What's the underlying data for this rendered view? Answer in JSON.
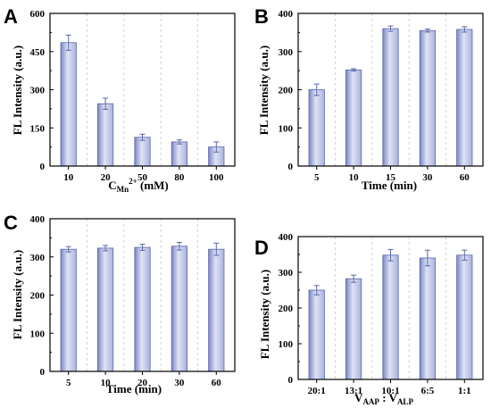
{
  "colors": {
    "bar_fill_light": "#dfe3f4",
    "bar_fill_mid": "#a9b1dd",
    "bar_fill_dark": "#7c87c4",
    "bar_stroke": "#5a66a8",
    "divider": "#c8c8c8",
    "axis": "#000000"
  },
  "chart_data": [
    {
      "panel": "A",
      "type": "bar",
      "categories": [
        "10",
        "20",
        "50",
        "80",
        "100"
      ],
      "values": [
        485,
        245,
        113,
        95,
        75
      ],
      "errors": [
        30,
        22,
        12,
        8,
        20
      ],
      "ylabel": "FL Intensity (a.u.)",
      "xlabel_main": "C",
      "xlabel_sub": "Mn",
      "xlabel_sup": "2+",
      "xlabel_unit": " (mM)",
      "ylim": [
        0,
        600
      ],
      "yticks": [
        "0",
        "150",
        "300",
        "450",
        "600"
      ],
      "grid": "dashed vertical dividers between bars"
    },
    {
      "panel": "B",
      "type": "bar",
      "categories": [
        "5",
        "10",
        "15",
        "30",
        "60"
      ],
      "values": [
        200,
        252,
        360,
        355,
        358
      ],
      "errors": [
        15,
        3,
        7,
        4,
        7
      ],
      "ylabel": "FL Intensity (a.u.)",
      "xlabel": "Time (min)",
      "ylim": [
        0,
        400
      ],
      "yticks": [
        "0",
        "100",
        "200",
        "300",
        "400"
      ],
      "grid": "dashed vertical dividers between bars"
    },
    {
      "panel": "C",
      "type": "bar",
      "categories": [
        "5",
        "10",
        "20",
        "30",
        "60"
      ],
      "values": [
        320,
        323,
        325,
        328,
        320
      ],
      "errors": [
        7,
        7,
        8,
        10,
        16
      ],
      "ylabel": "FL Intensity (a.u.)",
      "xlabel": "Time (min)",
      "ylim": [
        0,
        400
      ],
      "yticks": [
        "0",
        "100",
        "200",
        "300",
        "400"
      ],
      "grid": "dashed vertical dividers between bars"
    },
    {
      "panel": "D",
      "type": "bar",
      "categories": [
        "20:1",
        "13:1",
        "10:1",
        "6:5",
        "1:1"
      ],
      "values": [
        250,
        282,
        348,
        340,
        348
      ],
      "errors": [
        13,
        10,
        16,
        22,
        14
      ],
      "ylabel": "FL Intensity (a.u.)",
      "xlabel_v1": "V",
      "xlabel_sub1": "AAP",
      "xlabel_sep": " : ",
      "xlabel_v2": "V",
      "xlabel_sub2": "ALP",
      "ylim": [
        0,
        400
      ],
      "yticks": [
        "0",
        "100",
        "200",
        "300",
        "400"
      ],
      "grid": "dashed vertical dividers between bars"
    }
  ]
}
